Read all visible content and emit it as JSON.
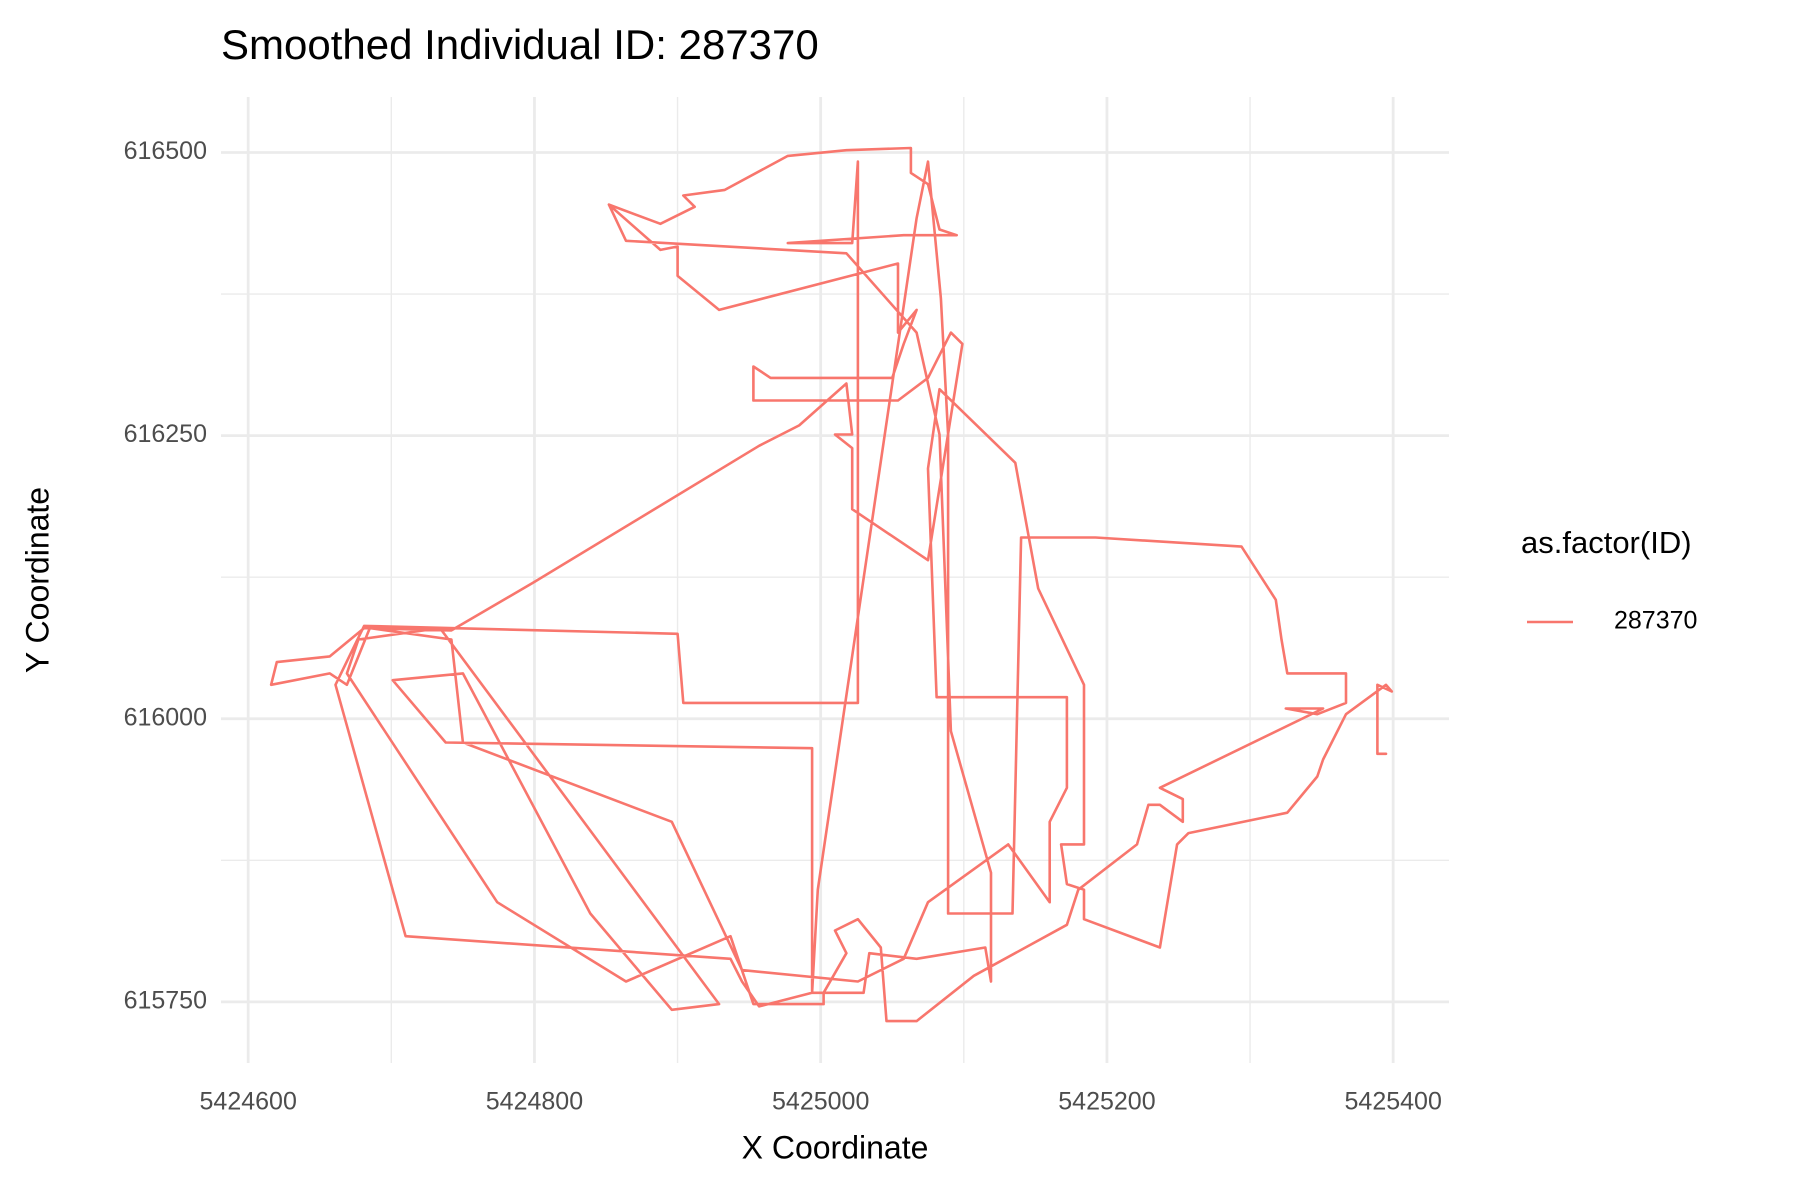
{
  "chart_data": {
    "type": "line",
    "title": "Smoothed Individual ID: 287370",
    "x_label": "X Coordinate",
    "y_label": "Y Coordinate",
    "legend_title": "as.factor(ID)",
    "legend_position": "right",
    "grid": true,
    "xlim": [
      5424581,
      5425439
    ],
    "ylim": [
      615696,
      616549
    ],
    "xticks": [
      5424600,
      5424800,
      5425000,
      5425200,
      5425400
    ],
    "yticks": [
      615750,
      616000,
      616250,
      616500
    ],
    "xminorticks": [
      5424700,
      5424900,
      5425100,
      5425300
    ],
    "yminorticks": [
      615875,
      616125,
      616375
    ],
    "x": [
      5425395,
      5425389,
      5425389,
      5425399,
      5425395,
      5425367,
      5425351,
      5425347,
      5425326,
      5425257,
      5425249,
      5425237,
      5425184,
      5425184,
      5425172,
      5425168,
      5425184,
      5425184,
      5425152,
      5425144,
      5425136,
      5425083,
      5425075,
      5425081,
      5425172,
      5425172,
      5425160,
      5425160,
      5425131,
      5425075,
      5425058,
      5425026,
      5424945,
      5424896,
      5424750,
      5424742,
      5424685,
      5424669,
      5424657,
      5424616,
      5424620,
      5424657,
      5424681,
      5424742,
      5424799,
      5424957,
      5424985,
      5425018,
      5425022,
      5425010,
      5425022,
      5425022,
      5425075,
      5425099,
      5425091,
      5425075,
      5425054,
      5424953,
      5424953,
      5424965,
      5425050,
      5425058,
      5425067,
      5425054,
      5425054,
      5424929,
      5424900,
      5424900,
      5424888,
      5424852,
      5424888,
      5424912,
      5424904,
      5424933,
      5424977,
      5425018,
      5425063,
      5425063,
      5425075,
      5425083,
      5425095,
      5425058,
      5424977,
      5425022,
      5425026,
      5425026,
      5425026,
      5424904,
      5424900,
      5424681,
      5424661,
      5424710,
      5424937,
      5424945,
      5424957,
      5424994,
      5424998,
      5425067,
      5425075,
      5425084,
      5425089,
      5425089,
      5425134,
      5425140,
      5425192,
      5425294,
      5425318,
      5425322,
      5425326,
      5425351,
      5425367,
      5425367,
      5425347,
      5425325,
      5425351,
      5425237,
      5425253,
      5425253,
      5425237,
      5425229,
      5425221,
      5425180,
      5425172,
      5425107,
      5425067,
      5425046,
      5425042,
      5425026,
      5425010,
      5425018,
      5425002,
      5425002,
      5424953,
      5424937,
      5424864,
      5424774,
      5424669,
      5424677,
      5424734,
      5424929,
      5424896,
      5424839,
      5424750,
      5424701,
      5424738,
      5424994,
      5424994,
      5425030,
      5425034,
      5425067,
      5425115,
      5425119,
      5425119,
      5425091,
      5425083,
      5425067,
      5425018,
      5424864,
      5424852
    ],
    "series": [
      {
        "name": "287370",
        "color": "#F8766D",
        "values": [
          615969,
          615969,
          616030,
          616024,
          616030,
          616004,
          615964,
          615949,
          615917,
          615899,
          615889,
          615798,
          615823,
          615849,
          615854,
          615889,
          615889,
          616030,
          616115,
          616170,
          616226,
          616291,
          616221,
          616019,
          616019,
          615939,
          615909,
          615838,
          615889,
          615838,
          615788,
          615768,
          615778,
          615909,
          615979,
          616070,
          616080,
          616030,
          616040,
          616030,
          616050,
          616055,
          616080,
          616078,
          616120,
          616241,
          616259,
          616296,
          616251,
          616251,
          616239,
          616185,
          616140,
          616331,
          616341,
          616301,
          616281,
          616281,
          616311,
          616301,
          616301,
          616331,
          616361,
          616341,
          616402,
          616361,
          616391,
          616417,
          616414,
          616454,
          616437,
          616452,
          616462,
          616467,
          616497,
          616502,
          616504,
          616482,
          616472,
          616432,
          616427,
          616427,
          616420,
          616420,
          616492,
          616331,
          616014,
          616014,
          616075,
          616082,
          616030,
          615808,
          615788,
          615768,
          615746,
          615758,
          615849,
          616442,
          616492,
          616371,
          616251,
          615828,
          615828,
          616160,
          616160,
          616152,
          616105,
          616070,
          616040,
          616040,
          616040,
          616014,
          616004,
          616009,
          616009,
          615939,
          615929,
          615909,
          615924,
          615924,
          615889,
          615849,
          615818,
          615773,
          615733,
          615733,
          615798,
          615823,
          615813,
          615793,
          615758,
          615748,
          615748,
          615808,
          615768,
          615838,
          616040,
          616070,
          616080,
          615748,
          615743,
          615828,
          616040,
          616034,
          615979,
          615974,
          615758,
          615758,
          615793,
          615788,
          615798,
          615768,
          615864,
          615989,
          616251,
          616341,
          616411,
          616422,
          616454
        ]
      }
    ]
  }
}
